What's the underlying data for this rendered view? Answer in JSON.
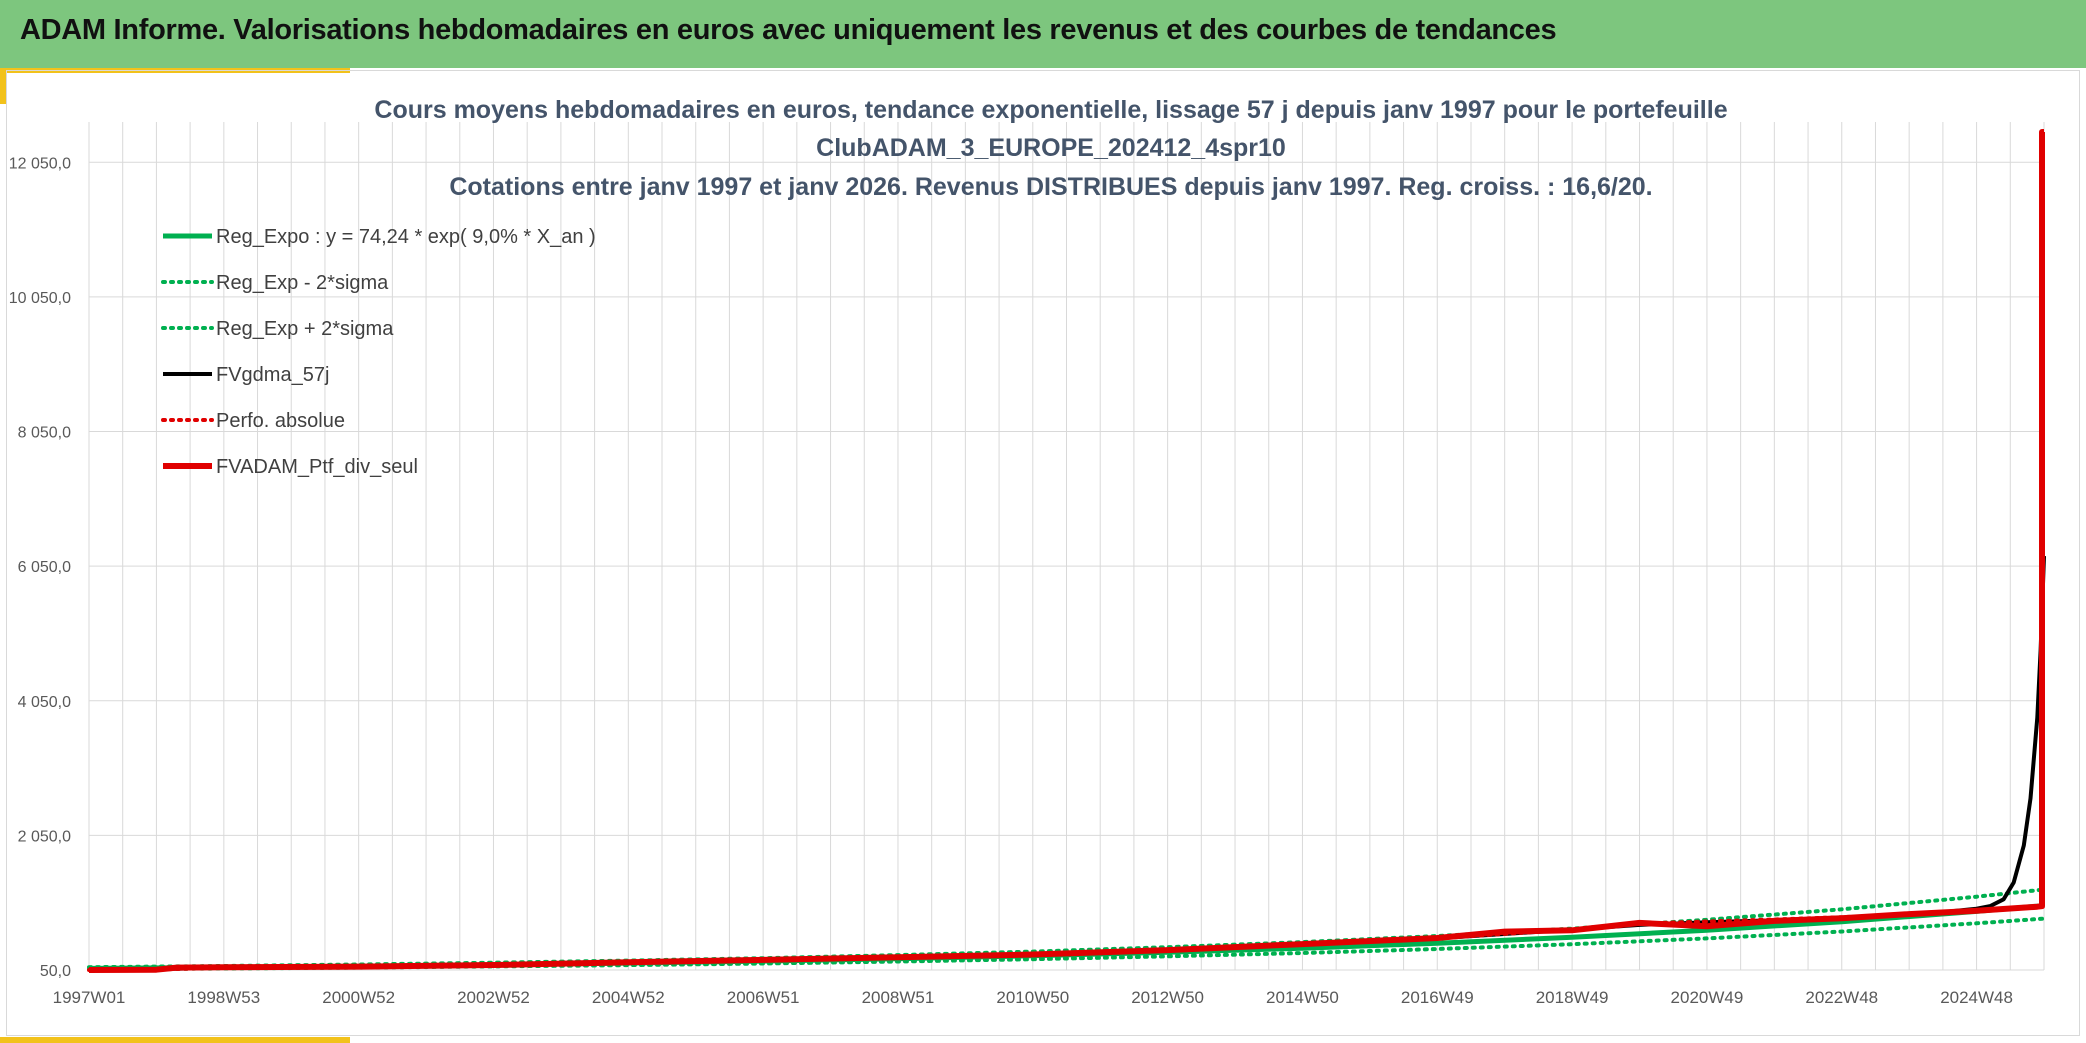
{
  "header": {
    "title": "ADAM Informe. Valorisations hebdomadaires en euros avec uniquement les revenus et des courbes de tendances"
  },
  "colors": {
    "header_bg": "#7dc67e",
    "accent": "#f2c21b",
    "reg_green": "#00b050",
    "fvgdma": "#000000",
    "red": "#e00000",
    "title_text": "#44546a",
    "grid": "#d9d9d9"
  },
  "chart_data": {
    "type": "line",
    "title_lines": [
      "Cours moyens hebdomadaires en euros, tendance exponentielle, lissage 57 j depuis janv 1997 pour le portefeuille",
      "ClubADAM_3_EUROPE_202412_4spr10",
      "Cotations entre janv 1997 et janv 2026. Revenus DISTRIBUES depuis janv 1997. Reg. croiss. : 16,6/20."
    ],
    "xlabel": "",
    "ylabel": "",
    "ylim": [
      50,
      12500
    ],
    "xlim": [
      0,
      29
    ],
    "yticks": [
      50,
      2050,
      4050,
      6050,
      8050,
      10050,
      12050
    ],
    "ytick_labels": [
      "50,0",
      "2 050,0",
      "4 050,0",
      "6 050,0",
      "8 050,0",
      "10 050,0",
      "12 050,0"
    ],
    "xticks": [
      0,
      2,
      4,
      6,
      8,
      10,
      12,
      14,
      16,
      18,
      20,
      22,
      24,
      26,
      28
    ],
    "xtick_labels": [
      "1997W01",
      "1998W53",
      "2000W52",
      "2002W52",
      "2004W52",
      "2006W51",
      "2008W51",
      "2010W50",
      "2012W50",
      "2014W50",
      "2016W49",
      "2018W49",
      "2020W49",
      "2022W48",
      "2024W48"
    ],
    "x_units": "years since 1997W01",
    "legend_position": "top-left",
    "series": [
      {
        "name": "Reg_Expo : y = 74,24 * exp( 9,0% *  X_an )",
        "style": "solid",
        "color": "#00b050",
        "width": 5,
        "x": [
          0,
          2,
          4,
          6,
          8,
          10,
          12,
          14,
          16,
          18,
          20,
          22,
          24,
          26,
          28,
          29
        ],
        "values": [
          74,
          89,
          107,
          127,
          152,
          182,
          218,
          261,
          313,
          374,
          448,
          536,
          642,
          768,
          920,
          1007
        ]
      },
      {
        "name": "Reg_Exp - 2*sigma",
        "style": "dotted",
        "color": "#00b050",
        "width": 4,
        "x": [
          0,
          2,
          4,
          6,
          8,
          10,
          12,
          14,
          16,
          18,
          20,
          22,
          24,
          26,
          28,
          29
        ],
        "values": [
          60,
          72,
          86,
          103,
          123,
          147,
          176,
          211,
          253,
          303,
          362,
          434,
          519,
          622,
          744,
          814
        ]
      },
      {
        "name": "Reg_Exp + 2*sigma",
        "style": "dotted",
        "color": "#00b050",
        "width": 4,
        "x": [
          0,
          2,
          4,
          6,
          8,
          10,
          12,
          14,
          16,
          18,
          20,
          22,
          24,
          26,
          28,
          29
        ],
        "values": [
          92,
          110,
          132,
          158,
          189,
          226,
          271,
          324,
          388,
          464,
          555,
          665,
          796,
          952,
          1139,
          1246
        ]
      },
      {
        "name": "FVgdma_57j",
        "style": "solid",
        "color": "#000000",
        "width": 4,
        "x": [
          0,
          1,
          2,
          4,
          6,
          8,
          10,
          12,
          14,
          16,
          18,
          20,
          22,
          23,
          24,
          25,
          26,
          27,
          27.5,
          28,
          28.2,
          28.4,
          28.55,
          28.7,
          28.8,
          28.9,
          28.95,
          29
        ],
        "values": [
          50,
          60,
          85,
          95,
          120,
          160,
          195,
          235,
          275,
          340,
          430,
          520,
          650,
          720,
          760,
          790,
          830,
          880,
          910,
          960,
          1000,
          1100,
          1350,
          1900,
          2600,
          3800,
          4800,
          6200
        ]
      },
      {
        "name": "Perfo. absolue",
        "style": "dotted",
        "color": "#e00000",
        "width": 4,
        "x": [
          0,
          1,
          2,
          4,
          6,
          8,
          10,
          12,
          14,
          16,
          18,
          20,
          22,
          23,
          24,
          25,
          26,
          27,
          28,
          28.9,
          29
        ],
        "values": [
          50,
          58,
          82,
          96,
          122,
          162,
          196,
          236,
          278,
          342,
          432,
          522,
          650,
          740,
          770,
          800,
          835,
          880,
          940,
          990,
          1000
        ]
      },
      {
        "name": "FVADAM_Ptf_div_seul",
        "style": "solid",
        "color": "#e00000",
        "width": 6,
        "x": [
          0,
          1,
          1.3,
          2,
          4,
          6,
          8,
          10,
          12,
          14,
          16,
          18,
          20,
          21,
          22,
          23,
          24,
          25,
          26,
          27,
          28,
          28.9,
          28.97,
          28.97,
          29
        ],
        "values": [
          50,
          55,
          85,
          90,
          100,
          125,
          165,
          200,
          240,
          280,
          345,
          435,
          525,
          620,
          640,
          750,
          700,
          780,
          820,
          880,
          930,
          990,
          1000,
          12500,
          12500
        ]
      }
    ]
  }
}
